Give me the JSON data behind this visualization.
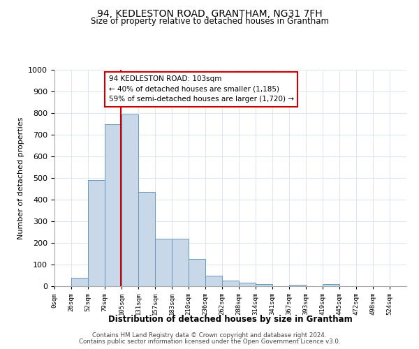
{
  "title": "94, KEDLESTON ROAD, GRANTHAM, NG31 7FH",
  "subtitle": "Size of property relative to detached houses in Grantham",
  "xlabel": "Distribution of detached houses by size in Grantham",
  "ylabel": "Number of detached properties",
  "bin_labels": [
    "0sqm",
    "26sqm",
    "52sqm",
    "79sqm",
    "105sqm",
    "131sqm",
    "157sqm",
    "183sqm",
    "210sqm",
    "236sqm",
    "262sqm",
    "288sqm",
    "314sqm",
    "341sqm",
    "367sqm",
    "393sqm",
    "419sqm",
    "445sqm",
    "472sqm",
    "498sqm",
    "524sqm"
  ],
  "bar_heights": [
    0,
    40,
    490,
    750,
    795,
    435,
    220,
    220,
    125,
    50,
    25,
    15,
    10,
    0,
    8,
    0,
    10,
    0,
    0,
    0,
    0
  ],
  "bar_color": "#c8d8e8",
  "bar_edge_color": "#6699bb",
  "property_line_x": 103,
  "bin_width": 26,
  "ylim": [
    0,
    1000
  ],
  "annotation_text": "94 KEDLESTON ROAD: 103sqm\n← 40% of detached houses are smaller (1,185)\n59% of semi-detached houses are larger (1,720) →",
  "annotation_box_color": "#ffffff",
  "annotation_box_edge": "#cc0000",
  "red_line_color": "#cc0000",
  "footer1": "Contains HM Land Registry data © Crown copyright and database right 2024.",
  "footer2": "Contains public sector information licensed under the Open Government Licence v3.0.",
  "background_color": "#ffffff",
  "grid_color": "#dde8f0"
}
